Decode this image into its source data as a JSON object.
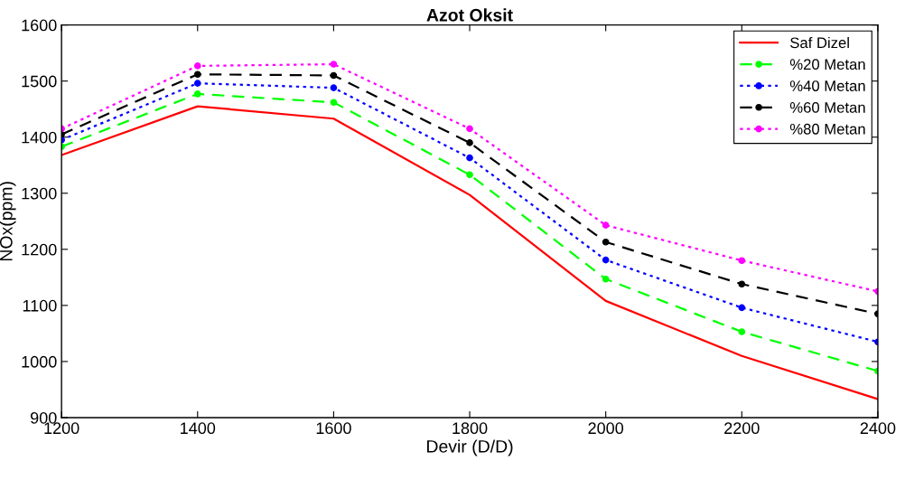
{
  "chart_data": {
    "type": "line",
    "title": "Azot Oksit",
    "xlabel": "Devir (D/D)",
    "ylabel": "NOx(ppm)",
    "x": [
      1200,
      1400,
      1600,
      1800,
      2000,
      2200,
      2400
    ],
    "xlim": [
      1200,
      2400
    ],
    "xticks": [
      1200,
      1400,
      1600,
      1800,
      2000,
      2200,
      2400
    ],
    "ylim": [
      900,
      1600
    ],
    "yticks": [
      900,
      1000,
      1100,
      1200,
      1300,
      1400,
      1500,
      1600
    ],
    "grid": false,
    "legend": "top right",
    "series": [
      {
        "name": "Saf Dizel",
        "color": "#ff0000",
        "line_style": "solid",
        "marker": "none",
        "values": [
          1368,
          1455,
          1433,
          1297,
          1108,
          1010,
          933
        ]
      },
      {
        "name": "%20 Metan",
        "color": "#00ff00",
        "line_style": "dashed",
        "marker": "circle",
        "values": [
          1383,
          1477,
          1462,
          1333,
          1147,
          1053,
          983
        ]
      },
      {
        "name": "%40 Metan",
        "color": "#0000ff",
        "line_style": "dotted",
        "marker": "circle",
        "values": [
          1395,
          1496,
          1488,
          1363,
          1181,
          1096,
          1035
        ]
      },
      {
        "name": "%60 Metan",
        "color": "#000000",
        "line_style": "dashed",
        "marker": "circle",
        "values": [
          1405,
          1512,
          1510,
          1390,
          1213,
          1138,
          1085
        ]
      },
      {
        "name": "%80 Metan",
        "color": "#ff00ff",
        "line_style": "dotted",
        "marker": "circle",
        "values": [
          1415,
          1527,
          1530,
          1415,
          1243,
          1180,
          1125
        ]
      }
    ]
  }
}
